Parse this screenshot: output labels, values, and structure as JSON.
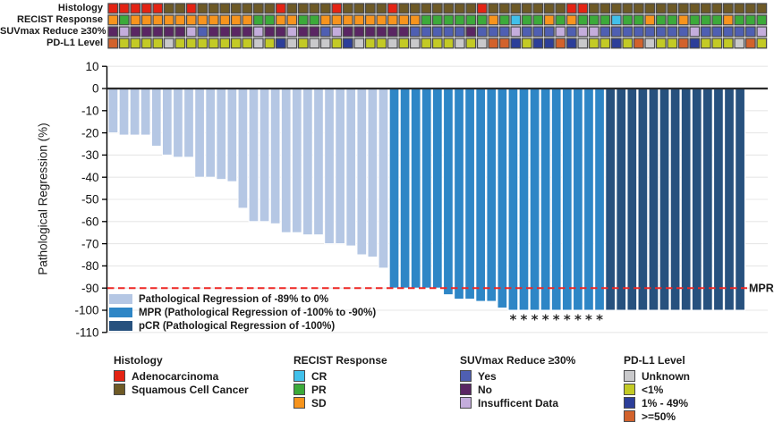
{
  "tracks": {
    "labels": [
      "Histology",
      "RECIST Response",
      "SUVmax Reduce ≥30%",
      "PD-L1 Level"
    ],
    "histology": [
      "A",
      "A",
      "A",
      "A",
      "A",
      "S",
      "S",
      "A",
      "S",
      "S",
      "S",
      "S",
      "S",
      "S",
      "S",
      "A",
      "S",
      "S",
      "S",
      "S",
      "A",
      "S",
      "S",
      "S",
      "S",
      "A",
      "S",
      "S",
      "S",
      "S",
      "S",
      "S",
      "S",
      "A",
      "S",
      "S",
      "S",
      "S",
      "S",
      "S",
      "S",
      "A",
      "A",
      "S",
      "S",
      "S",
      "S",
      "S",
      "S",
      "S",
      "S",
      "S",
      "S",
      "S",
      "S",
      "S",
      "S",
      "S",
      "S"
    ],
    "recist": [
      "SD",
      "PR",
      "SD",
      "SD",
      "SD",
      "SD",
      "SD",
      "SD",
      "SD",
      "SD",
      "SD",
      "SD",
      "SD",
      "PR",
      "PR",
      "SD",
      "SD",
      "PR",
      "PR",
      "SD",
      "SD",
      "SD",
      "SD",
      "SD",
      "SD",
      "SD",
      "SD",
      "SD",
      "PR",
      "PR",
      "PR",
      "PR",
      "PR",
      "PR",
      "SD",
      "PR",
      "CR",
      "PR",
      "PR",
      "SD",
      "PR",
      "SD",
      "PR",
      "PR",
      "PR",
      "CR",
      "PR",
      "PR",
      "SD",
      "PR",
      "PR",
      "SD",
      "PR",
      "PR",
      "PR",
      "SD",
      "PR",
      "PR",
      "PR"
    ],
    "suvmax": [
      "N",
      "I",
      "N",
      "N",
      "N",
      "N",
      "N",
      "I",
      "Y",
      "N",
      "N",
      "N",
      "N",
      "I",
      "N",
      "N",
      "I",
      "N",
      "N",
      "Y",
      "I",
      "N",
      "N",
      "N",
      "N",
      "N",
      "N",
      "Y",
      "Y",
      "Y",
      "Y",
      "Y",
      "N",
      "Y",
      "Y",
      "Y",
      "I",
      "Y",
      "Y",
      "Y",
      "I",
      "Y",
      "I",
      "I",
      "Y",
      "Y",
      "Y",
      "Y",
      "Y",
      "Y",
      "Y",
      "Y",
      "I",
      "Y",
      "Y",
      "Y",
      "Y",
      "Y",
      "I"
    ],
    "pdl1": [
      "H",
      "L",
      "L",
      "L",
      "L",
      "U",
      "L",
      "L",
      "L",
      "L",
      "L",
      "L",
      "L",
      "U",
      "L",
      "M",
      "U",
      "L",
      "U",
      "U",
      "L",
      "M",
      "U",
      "L",
      "L",
      "U",
      "L",
      "U",
      "L",
      "L",
      "L",
      "U",
      "L",
      "U",
      "H",
      "H",
      "M",
      "L",
      "M",
      "M",
      "H",
      "M",
      "U",
      "L",
      "L",
      "M",
      "L",
      "H",
      "U",
      "L",
      "L",
      "H",
      "M",
      "L",
      "L",
      "L",
      "U",
      "H",
      "L"
    ]
  },
  "chart_data": {
    "type": "bar",
    "title": "",
    "xlabel": "",
    "ylabel": "Pathological Regression (%)",
    "ylim": [
      -110,
      10
    ],
    "yticks": [
      10,
      0,
      -10,
      -20,
      -30,
      -40,
      -50,
      -60,
      -70,
      -80,
      -90,
      -100,
      -110
    ],
    "grid": true,
    "values": [
      -20,
      -21,
      -21,
      -21,
      -26,
      -30,
      -31,
      -31,
      -40,
      -40,
      -41,
      -42,
      -54,
      -60,
      -60,
      -61,
      -65,
      -65,
      -66,
      -66,
      -70,
      -70,
      -71,
      -75,
      -76,
      -81,
      -90,
      -90,
      -90,
      -90,
      -90,
      -93,
      -95,
      -95,
      -96,
      -96,
      -99,
      -100,
      -100,
      -100,
      -100,
      -100,
      -100,
      -100,
      -100,
      -100,
      -100,
      -100,
      -100,
      -100,
      -100,
      -100,
      -100,
      -100,
      -100,
      -100,
      -100,
      -100,
      -100
    ],
    "classes": [
      "reg",
      "reg",
      "reg",
      "reg",
      "reg",
      "reg",
      "reg",
      "reg",
      "reg",
      "reg",
      "reg",
      "reg",
      "reg",
      "reg",
      "reg",
      "reg",
      "reg",
      "reg",
      "reg",
      "reg",
      "reg",
      "reg",
      "reg",
      "reg",
      "reg",
      "reg",
      "mpr",
      "mpr",
      "mpr",
      "mpr",
      "mpr",
      "mpr",
      "mpr",
      "mpr",
      "mpr",
      "mpr",
      "mpr",
      "mpr",
      "mpr",
      "mpr",
      "mpr",
      "mpr",
      "mpr",
      "mpr",
      "mpr",
      "mpr",
      "pcr",
      "pcr",
      "pcr",
      "pcr",
      "pcr",
      "pcr",
      "pcr",
      "pcr",
      "pcr",
      "pcr",
      "pcr",
      "pcr",
      "pcr"
    ],
    "asterisk_columns": [
      38,
      39,
      40,
      41,
      42,
      43,
      44,
      45,
      46
    ],
    "asterisk_glyph": "*",
    "mpr_line": {
      "value": -90,
      "label": "MPR"
    }
  },
  "plot_legend": [
    {
      "key": "bar_reg",
      "label": "Pathological Regression of -89% to 0%"
    },
    {
      "key": "bar_mpr",
      "label": "MPR (Pathological Regression of -100% to -90%)"
    },
    {
      "key": "bar_pcr",
      "label": "pCR (Pathological Regression of -100%)"
    }
  ],
  "bottom_legend": [
    {
      "title": "Histology",
      "items": [
        {
          "key": "red",
          "label": "Adenocarcinoma"
        },
        {
          "key": "brown",
          "label": "Squamous Cell Cancer"
        }
      ]
    },
    {
      "title": "RECIST Response",
      "items": [
        {
          "key": "cyan",
          "label": "CR"
        },
        {
          "key": "green",
          "label": "PR"
        },
        {
          "key": "orange",
          "label": "SD"
        }
      ]
    },
    {
      "title": "SUVmax Reduce ≥30%",
      "items": [
        {
          "key": "blue",
          "label": "Yes"
        },
        {
          "key": "purple",
          "label": "No"
        },
        {
          "key": "lavender",
          "label": "Insufficent Data"
        }
      ]
    },
    {
      "title": "PD-L1 Level",
      "items": [
        {
          "key": "gray",
          "label": "Unknown"
        },
        {
          "key": "yellow",
          "label": "<1%"
        },
        {
          "key": "navy",
          "label": "1% - 49%"
        },
        {
          "key": "orangered",
          "label": ">=50%"
        }
      ]
    }
  ],
  "track_color_map": {
    "histology": {
      "A": "red",
      "S": "brown"
    },
    "recist": {
      "SD": "orange",
      "PR": "green",
      "CR": "cyan"
    },
    "suvmax": {
      "Y": "blue",
      "N": "purple",
      "I": "lavender"
    },
    "pdl1": {
      "U": "gray",
      "L": "yellow",
      "M": "navy",
      "H": "orangered"
    }
  },
  "colors": {
    "red": "#e42313",
    "brown": "#6e5a26",
    "orange": "#f7941d",
    "green": "#3caa3a",
    "cyan": "#41c0ea",
    "blue": "#4f5fb2",
    "purple": "#5a2663",
    "lavender": "#c4addc",
    "gray": "#c9c9cb",
    "yellow": "#c3ca25",
    "navy": "#2c3e99",
    "orangered": "#d2622c",
    "bar_reg": "#b5c7e4",
    "bar_mpr": "#2e86c6",
    "bar_pcr": "#27517e",
    "mpr_line": "#ee2724",
    "zero_line": "#2a2a2a",
    "gridline": "#e7e7e7",
    "cell_border": "#4a4a4c"
  }
}
